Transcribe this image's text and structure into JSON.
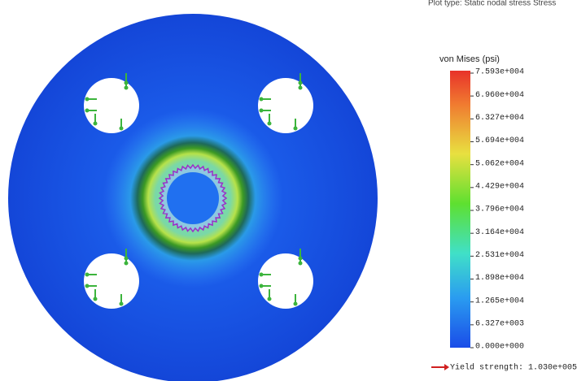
{
  "header": {
    "plot_type": "Plot type: Static nodal stress Stress"
  },
  "legend": {
    "title": "von Mises (psi)",
    "labels": [
      "7.593e+004",
      "6.960e+004",
      "6.327e+004",
      "5.694e+004",
      "5.062e+004",
      "4.429e+004",
      "3.796e+004",
      "3.164e+004",
      "2.531e+004",
      "1.898e+004",
      "1.265e+004",
      "6.327e+003",
      "0.000e+000"
    ],
    "yield": "Yield strength: 1.030e+005"
  }
}
